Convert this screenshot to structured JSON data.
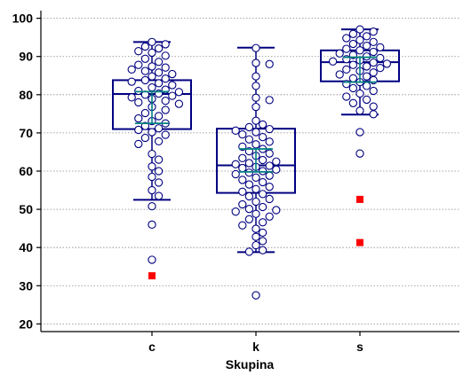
{
  "chart_data": {
    "type": "box",
    "xlabel": "Skupina",
    "ylabel": "",
    "ylim": [
      18,
      102
    ],
    "yticks": [
      20,
      30,
      40,
      50,
      60,
      70,
      80,
      90,
      100
    ],
    "grid": "horizontal dotted",
    "categories": [
      "c",
      "k",
      "s"
    ],
    "colors": {
      "box": "#000080",
      "point_stroke": "#000080",
      "point_fill": "#ffffff",
      "ci": "#008080",
      "outlier": "#ff0000"
    },
    "groups": [
      {
        "name": "c",
        "box": {
          "q1": 71,
          "median": 80.2,
          "q3": 83.8,
          "whisker_low": 52.5,
          "whisker_high": 93.8
        },
        "ci": [
          72.5,
          80.8
        ],
        "outliers": [
          32.6
        ],
        "points": [
          93.8,
          93.2,
          92.6,
          92.1,
          91.4,
          91.0,
          90.2,
          89.4,
          88.6,
          87.8,
          87.4,
          87.1,
          86.6,
          86.2,
          85.8,
          85.4,
          84.8,
          84.2,
          83.8,
          83.4,
          83.0,
          82.5,
          81.9,
          81.3,
          81.0,
          80.7,
          80.3,
          80.0,
          79.7,
          79.3,
          78.9,
          78.4,
          78.0,
          77.6,
          76.8,
          76.0,
          75.2,
          74.4,
          73.8,
          73.1,
          72.5,
          71.8,
          71.2,
          70.8,
          70.2,
          69.5,
          68.7,
          67.8,
          67.1,
          64.5,
          63.0,
          61.2,
          60.0,
          58.5,
          57.0,
          55.0,
          53.5,
          50.8,
          46.0,
          36.8
        ]
      },
      {
        "name": "k",
        "box": {
          "q1": 54.3,
          "median": 61.5,
          "q3": 71.1,
          "whisker_low": 38.8,
          "whisker_high": 92.3
        },
        "ci": [
          59.8,
          65.8
        ],
        "outliers": [],
        "points": [
          92.2,
          88.3,
          88.0,
          84.8,
          82.3,
          79.2,
          78.6,
          76.8,
          73.2,
          72.2,
          71.5,
          71.0,
          70.6,
          70.2,
          69.6,
          68.9,
          68.3,
          67.7,
          67.0,
          66.4,
          65.8,
          65.2,
          64.6,
          64.0,
          63.4,
          62.9,
          62.5,
          62.1,
          61.8,
          61.4,
          61.1,
          60.8,
          60.4,
          60.0,
          59.6,
          59.2,
          58.8,
          58.3,
          57.7,
          57.1,
          56.5,
          55.9,
          55.3,
          54.6,
          54.0,
          53.4,
          52.7,
          52.0,
          51.3,
          50.6,
          50.1,
          49.8,
          49.4,
          48.8,
          48.1,
          47.4,
          46.6,
          45.8,
          44.9,
          43.9,
          42.8,
          41.7,
          40.6,
          39.3,
          38.9,
          27.5
        ]
      },
      {
        "name": "s",
        "box": {
          "q1": 83.5,
          "median": 88.5,
          "q3": 91.6,
          "whisker_low": 74.8,
          "whisker_high": 97.1
        },
        "ci": [
          83.3,
          89.8
        ],
        "outliers": [
          52.6,
          41.3
        ],
        "points": [
          97.1,
          96.5,
          95.9,
          95.3,
          94.8,
          94.3,
          93.8,
          93.3,
          92.8,
          92.4,
          92.0,
          91.6,
          91.2,
          90.8,
          90.4,
          90.0,
          89.6,
          89.3,
          89.0,
          88.7,
          88.4,
          88.1,
          87.8,
          87.4,
          87.0,
          86.6,
          86.2,
          85.8,
          85.3,
          84.8,
          84.3,
          83.8,
          83.3,
          82.8,
          82.3,
          81.7,
          81.0,
          80.3,
          79.5,
          78.7,
          77.8,
          76.9,
          75.8,
          74.9,
          70.2,
          64.6
        ]
      }
    ]
  }
}
